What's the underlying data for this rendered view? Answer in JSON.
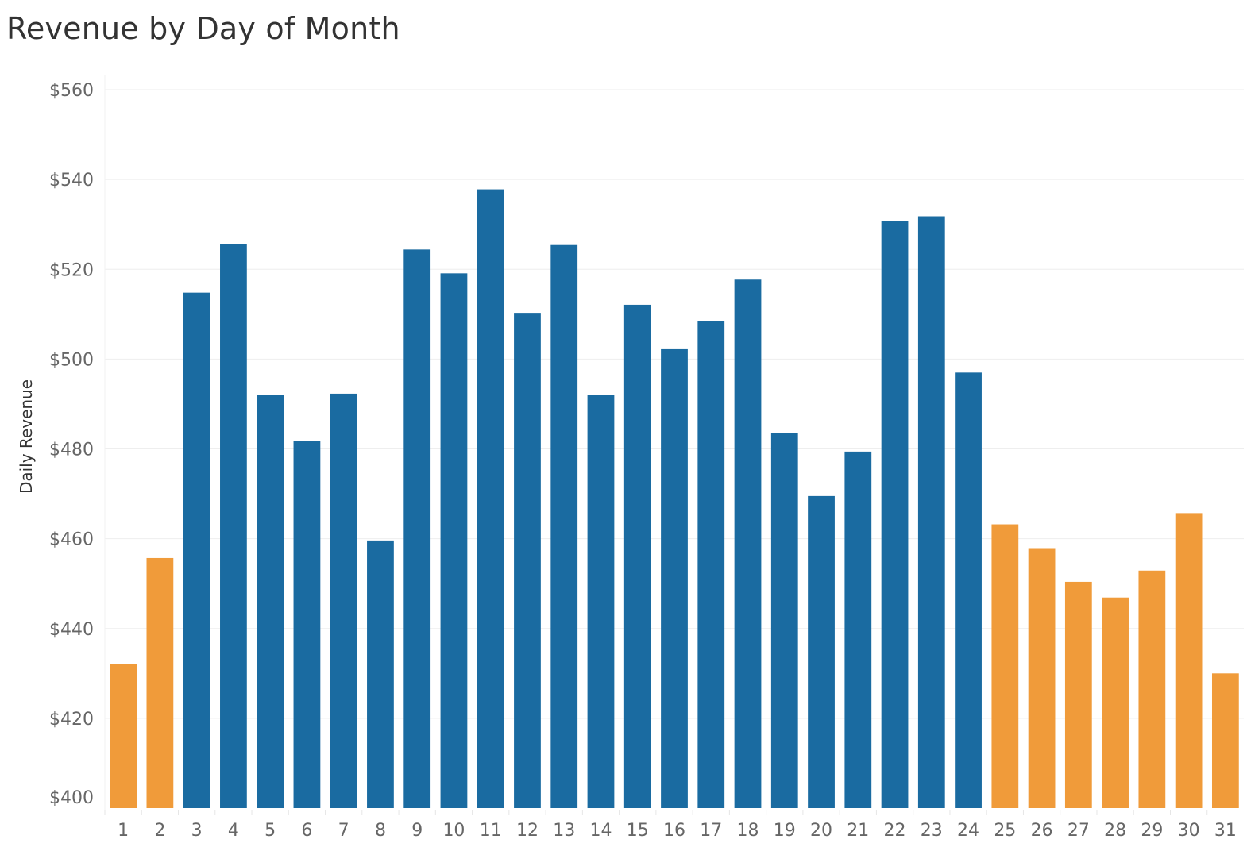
{
  "chart_data": {
    "type": "bar",
    "title": "Revenue by Day of Month",
    "xlabel": "",
    "ylabel": "Daily Revenue",
    "ylim": [
      400,
      560
    ],
    "y_ticks": [
      400,
      420,
      440,
      460,
      480,
      500,
      520,
      540,
      560
    ],
    "y_tick_format": "$",
    "grid": true,
    "legend": "none",
    "categories": [
      "1",
      "2",
      "3",
      "4",
      "5",
      "6",
      "7",
      "8",
      "9",
      "10",
      "11",
      "12",
      "13",
      "14",
      "15",
      "16",
      "17",
      "18",
      "19",
      "20",
      "21",
      "22",
      "23",
      "24",
      "25",
      "26",
      "27",
      "28",
      "29",
      "30",
      "31"
    ],
    "values": [
      432,
      455.7,
      514.8,
      525.7,
      492,
      481.8,
      492.3,
      459.6,
      524.4,
      519.1,
      537.8,
      510.3,
      525.4,
      492,
      512.1,
      502.2,
      508.5,
      517.7,
      483.6,
      469.5,
      479.4,
      530.8,
      531.8,
      497,
      463.2,
      457.9,
      450.4,
      446.9,
      452.9,
      465.7,
      430
    ],
    "bar_colors": [
      "#f09b3a",
      "#f09b3a",
      "#1a6ba1",
      "#1a6ba1",
      "#1a6ba1",
      "#1a6ba1",
      "#1a6ba1",
      "#1a6ba1",
      "#1a6ba1",
      "#1a6ba1",
      "#1a6ba1",
      "#1a6ba1",
      "#1a6ba1",
      "#1a6ba1",
      "#1a6ba1",
      "#1a6ba1",
      "#1a6ba1",
      "#1a6ba1",
      "#1a6ba1",
      "#1a6ba1",
      "#1a6ba1",
      "#1a6ba1",
      "#1a6ba1",
      "#1a6ba1",
      "#f09b3a",
      "#f09b3a",
      "#f09b3a",
      "#f09b3a",
      "#f09b3a",
      "#f09b3a",
      "#f09b3a"
    ],
    "colors": {
      "blue": "#1a6ba1",
      "orange": "#f09b3a",
      "grid": "#eeeeee",
      "tick_text": "#666666"
    }
  }
}
